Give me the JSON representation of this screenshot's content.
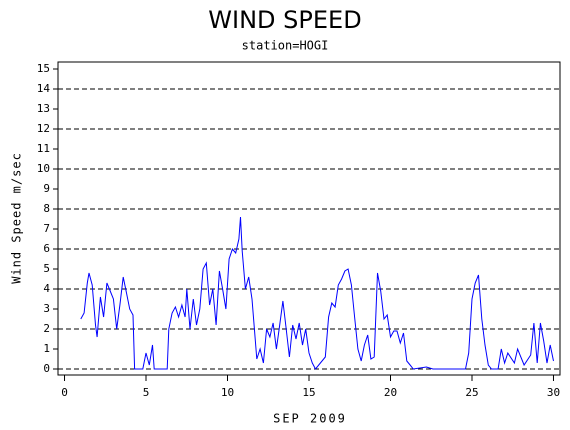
{
  "chart_data": {
    "type": "line",
    "title": "WIND SPEED",
    "subtitle": "station=HOGI",
    "x_label": "SEP 2009",
    "y_label": "Wind Speed m/sec",
    "xlim": [
      -0.4,
      30.4
    ],
    "xticks": [
      0,
      5,
      10,
      15,
      20,
      25,
      30
    ],
    "ylim": [
      -0.3,
      15.35
    ],
    "yticks": [
      0,
      1,
      2,
      3,
      4,
      5,
      6,
      7,
      8,
      9,
      10,
      11,
      12,
      13,
      14,
      15
    ],
    "grid_lines": [
      0,
      2,
      4,
      6,
      8,
      10,
      12,
      14
    ],
    "series": [
      {
        "color": "#0000ff",
        "x": [
          1.0,
          1.2,
          1.4,
          1.5,
          1.7,
          1.9,
          2.0,
          2.2,
          2.4,
          2.6,
          2.8,
          3.0,
          3.2,
          3.4,
          3.6,
          3.8,
          4.0,
          4.2,
          4.3,
          4.8,
          5.0,
          5.2,
          5.4,
          5.5,
          6.3,
          6.4,
          6.6,
          6.8,
          7.0,
          7.2,
          7.4,
          7.5,
          7.7,
          7.9,
          8.1,
          8.3,
          8.5,
          8.7,
          8.9,
          9.1,
          9.3,
          9.5,
          9.7,
          9.9,
          10.1,
          10.3,
          10.5,
          10.7,
          10.8,
          10.9,
          11.1,
          11.3,
          11.5,
          11.7,
          11.8,
          12.0,
          12.2,
          12.4,
          12.6,
          12.8,
          13.0,
          13.2,
          13.4,
          13.6,
          13.8,
          14.0,
          14.2,
          14.4,
          14.6,
          14.8,
          15.0,
          15.2,
          15.4,
          16.0,
          16.2,
          16.4,
          16.6,
          16.8,
          17.0,
          17.2,
          17.4,
          17.6,
          17.8,
          18.0,
          18.2,
          18.4,
          18.6,
          18.8,
          19.0,
          19.2,
          19.4,
          19.6,
          19.8,
          20.0,
          20.2,
          20.4,
          20.6,
          20.8,
          21.0,
          21.2,
          21.4,
          22.2,
          22.6,
          24.6,
          24.8,
          25.0,
          25.2,
          25.4,
          25.6,
          25.8,
          26.0,
          26.2,
          26.6,
          26.8,
          27.0,
          27.2,
          27.6,
          27.8,
          28.2,
          28.6,
          28.8,
          29.0,
          29.2,
          29.4,
          29.6,
          29.8,
          30.0
        ],
        "values": [
          2.5,
          2.8,
          4.3,
          4.8,
          4.2,
          2.2,
          1.6,
          3.6,
          2.6,
          4.3,
          3.9,
          3.5,
          2.0,
          3.2,
          4.6,
          3.8,
          3.0,
          2.7,
          0.0,
          0,
          0.8,
          0.2,
          1.2,
          0,
          0,
          2.0,
          2.8,
          3.1,
          2.6,
          3.2,
          2.6,
          4.0,
          2.0,
          3.5,
          2.2,
          3.0,
          5.0,
          5.3,
          3.2,
          4.0,
          2.2,
          4.9,
          4.0,
          3.0,
          5.5,
          6.0,
          5.8,
          6.5,
          7.6,
          5.9,
          4.0,
          4.6,
          3.5,
          1.5,
          0.5,
          1.0,
          0.3,
          2.0,
          1.6,
          2.3,
          1.0,
          2.2,
          3.4,
          2.0,
          0.6,
          2.2,
          1.5,
          2.3,
          1.2,
          2.0,
          0.8,
          0.3,
          0.0,
          0.6,
          2.6,
          3.3,
          3.1,
          4.2,
          4.5,
          4.9,
          5.0,
          4.2,
          2.6,
          1.0,
          0.4,
          1.2,
          1.7,
          0.5,
          0.6,
          4.8,
          3.9,
          2.5,
          2.7,
          1.6,
          1.9,
          1.9,
          1.3,
          1.8,
          0.4,
          0.2,
          0,
          0.1,
          0,
          0,
          0.8,
          3.5,
          4.3,
          4.7,
          2.5,
          1.2,
          0.2,
          0,
          0,
          1.0,
          0.3,
          0.8,
          0.3,
          1.0,
          0.2,
          0.7,
          2.3,
          0.3,
          2.3,
          1.4,
          0.3,
          1.2,
          0.4
        ]
      }
    ]
  }
}
